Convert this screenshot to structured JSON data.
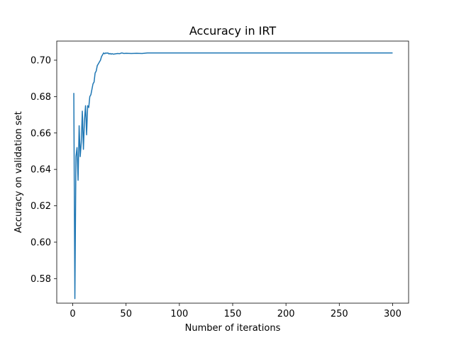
{
  "chart_data": {
    "type": "line",
    "title": "Accuracy in IRT",
    "xlabel": "Number of iterations",
    "ylabel": "Accuracy on validation set",
    "xlim": [
      -15,
      315
    ],
    "ylim": [
      0.5665,
      0.7105
    ],
    "xticks": [
      0,
      50,
      100,
      150,
      200,
      250,
      300
    ],
    "xtick_labels": [
      "0",
      "50",
      "100",
      "150",
      "200",
      "250",
      "300"
    ],
    "yticks": [
      0.58,
      0.6,
      0.62,
      0.64,
      0.66,
      0.68,
      0.7
    ],
    "ytick_labels": [
      "0.58",
      "0.60",
      "0.62",
      "0.64",
      "0.66",
      "0.68",
      "0.70"
    ],
    "grid": false,
    "series": [
      {
        "color": "#1f77b4",
        "x": [
          1,
          2,
          3,
          4,
          5,
          6,
          7,
          8,
          9,
          10,
          11,
          12,
          13,
          14,
          15,
          16,
          17,
          18,
          19,
          20,
          21,
          22,
          23,
          24,
          25,
          26,
          27,
          28,
          29,
          30,
          31,
          32,
          33,
          34,
          35,
          36,
          37,
          38,
          40,
          42,
          44,
          46,
          48,
          50,
          55,
          60,
          65,
          70,
          300
        ],
        "y": [
          0.682,
          0.569,
          0.647,
          0.652,
          0.634,
          0.664,
          0.647,
          0.655,
          0.672,
          0.651,
          0.667,
          0.675,
          0.659,
          0.675,
          0.674,
          0.68,
          0.681,
          0.684,
          0.687,
          0.688,
          0.693,
          0.694,
          0.697,
          0.698,
          0.699,
          0.7,
          0.702,
          0.703,
          0.704,
          0.7035,
          0.704,
          0.7038,
          0.704,
          0.7034,
          0.7037,
          0.7033,
          0.7036,
          0.7033,
          0.7035,
          0.7037,
          0.7036,
          0.704,
          0.7037,
          0.7038,
          0.7037,
          0.7038,
          0.7037,
          0.704,
          0.704
        ]
      }
    ]
  }
}
